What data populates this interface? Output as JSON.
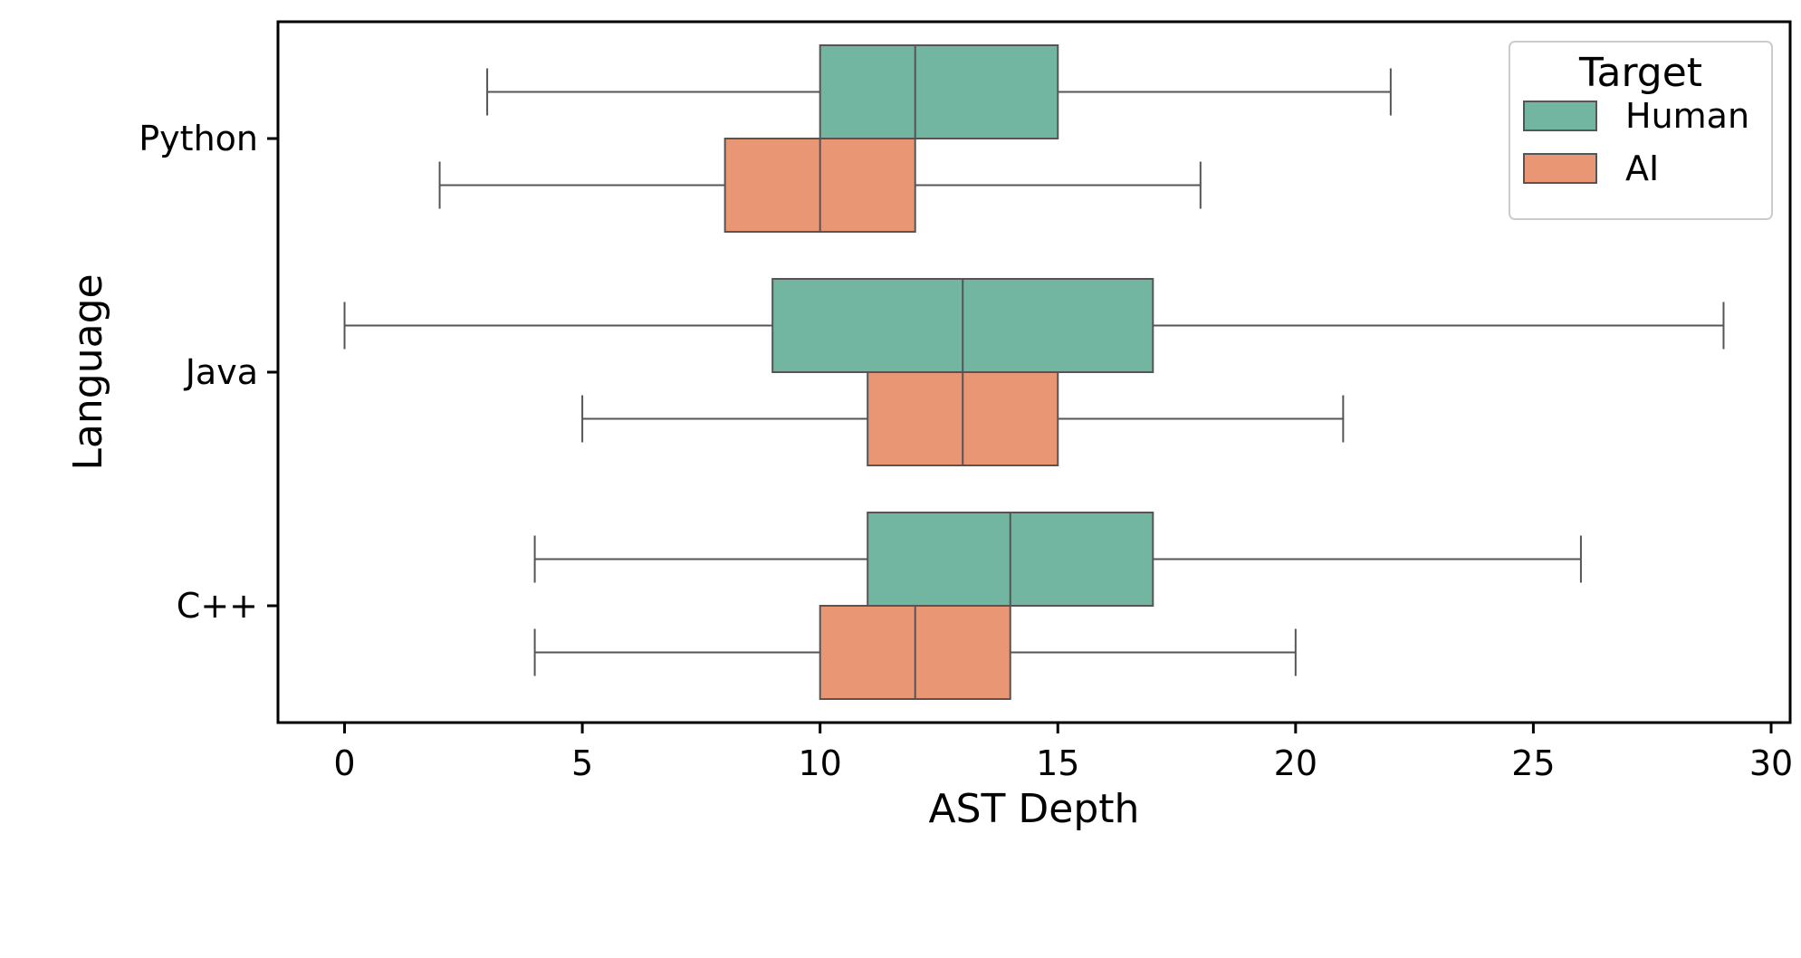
{
  "chart_data": {
    "type": "boxplot",
    "orientation": "horizontal",
    "xlabel": "AST Depth",
    "ylabel": "Language",
    "xlim": [
      -1.4,
      30.4
    ],
    "xticks": [
      0,
      5,
      10,
      15,
      20,
      25,
      30
    ],
    "categories": [
      "Python",
      "Java",
      "C++"
    ],
    "legend": {
      "title": "Target",
      "position": "top-right"
    },
    "grid": false,
    "series": [
      {
        "name": "Human",
        "color": "#72b6a1",
        "boxes": [
          {
            "category": "Python",
            "whisker_low": 3,
            "q1": 10,
            "median": 12,
            "q3": 15,
            "whisker_high": 22
          },
          {
            "category": "Java",
            "whisker_low": 0,
            "q1": 9,
            "median": 13,
            "q3": 17,
            "whisker_high": 29
          },
          {
            "category": "C++",
            "whisker_low": 4,
            "q1": 11,
            "median": 14,
            "q3": 17,
            "whisker_high": 26
          }
        ]
      },
      {
        "name": "AI",
        "color": "#e99675",
        "boxes": [
          {
            "category": "Python",
            "whisker_low": 2,
            "q1": 8,
            "median": 10,
            "q3": 12,
            "whisker_high": 18
          },
          {
            "category": "Java",
            "whisker_low": 5,
            "q1": 11,
            "median": 13,
            "q3": 15,
            "whisker_high": 21
          },
          {
            "category": "C++",
            "whisker_low": 4,
            "q1": 10,
            "median": 12,
            "q3": 14,
            "whisker_high": 20
          }
        ]
      }
    ]
  }
}
